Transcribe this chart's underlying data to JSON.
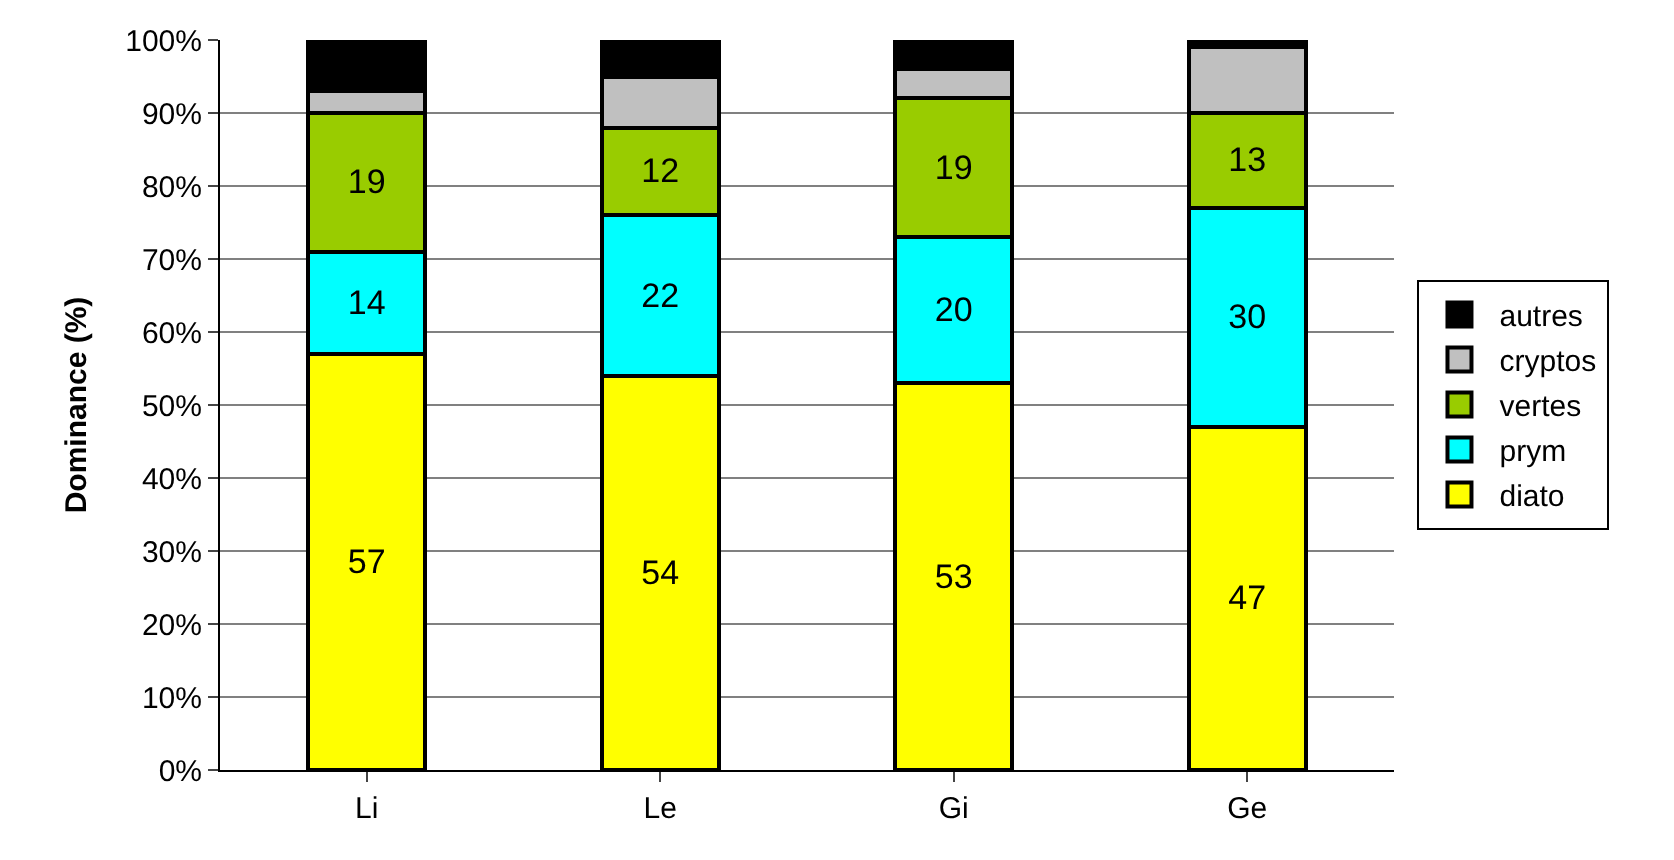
{
  "chart_data": {
    "type": "bar",
    "stacked": true,
    "ylabel": "Dominance (%)",
    "categories": [
      "Li",
      "Le",
      "Gi",
      "Ge"
    ],
    "series": [
      {
        "name": "diato",
        "color": "#ffff00",
        "values": [
          57,
          54,
          53,
          47
        ],
        "value_labels": [
          "57",
          "54",
          "53",
          "47"
        ]
      },
      {
        "name": "prym",
        "color": "#00ffff",
        "values": [
          14,
          22,
          20,
          30
        ],
        "value_labels": [
          "14",
          "22",
          "20",
          "30"
        ]
      },
      {
        "name": "vertes",
        "color": "#99cc00",
        "values": [
          19,
          12,
          19,
          13
        ],
        "value_labels": [
          "19",
          "12",
          "19",
          "13"
        ]
      },
      {
        "name": "cryptos",
        "color": "#c0c0c0",
        "values": [
          3,
          7,
          4,
          9
        ]
      },
      {
        "name": "autres",
        "color": "#000000",
        "values": [
          7,
          5,
          4,
          1
        ]
      }
    ],
    "ylim": [
      0,
      100
    ],
    "yticks": [
      {
        "value": 0,
        "label": "0%"
      },
      {
        "value": 10,
        "label": "10%"
      },
      {
        "value": 20,
        "label": "20%"
      },
      {
        "value": 30,
        "label": "30%"
      },
      {
        "value": 40,
        "label": "40%"
      },
      {
        "value": 50,
        "label": "50%"
      },
      {
        "value": 60,
        "label": "60%"
      },
      {
        "value": 70,
        "label": "70%"
      },
      {
        "value": 80,
        "label": "80%"
      },
      {
        "value": 90,
        "label": "90%"
      },
      {
        "value": 100,
        "label": "100%"
      }
    ],
    "grid": "y",
    "legend": "right"
  }
}
